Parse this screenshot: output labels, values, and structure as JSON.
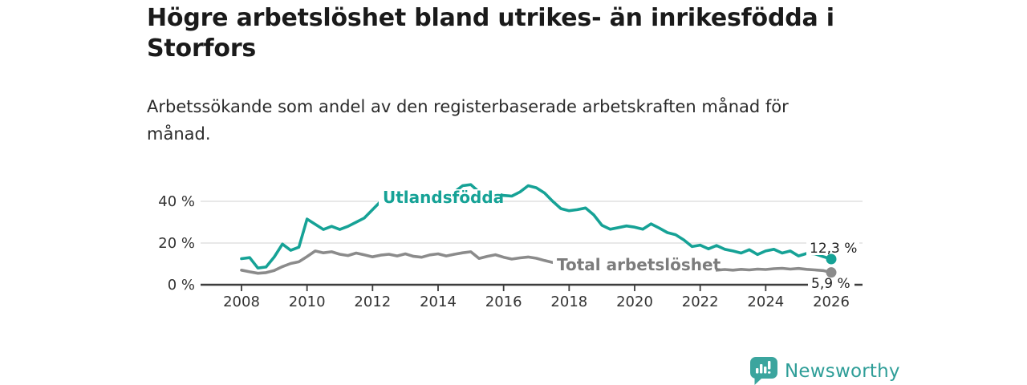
{
  "header": {
    "title_line1": "Högre arbetslöshet bland utrikes- än inrikesfödda i",
    "title_line2": "Storfors",
    "subtitle_line1": "Arbetssökande som andel av den registerbaserade arbetskraften månad för",
    "subtitle_line2": "månad."
  },
  "colors": {
    "foreign_born_line": "#16a296",
    "total_line": "#8b8b8b",
    "total_label_text": "#7c7c7c",
    "grid": "#d9d9d9",
    "axis": "#3d3d3d",
    "brand_teal": "#2f9e98",
    "value_label_text": "#1f1f1f"
  },
  "chart_data": {
    "type": "line",
    "title": "Högre arbetslöshet bland utrikes- än inrikesfödda i Storfors",
    "subtitle": "Arbetssökande som andel av den registerbaserade arbetskraften månad för månad.",
    "xlabel": "",
    "ylabel": "",
    "x_unit": "decimal_year",
    "xlim": [
      2007.8,
      2026.4
    ],
    "ylim": [
      0,
      50
    ],
    "grid": "horizontal",
    "gridlines_at": [
      20,
      40
    ],
    "yticks": [
      {
        "value": 0,
        "label": "0 %"
      },
      {
        "value": 20,
        "label": "20 %"
      },
      {
        "value": 40,
        "label": "40 %"
      }
    ],
    "xticks": [
      {
        "value": 2008,
        "label": "2008"
      },
      {
        "value": 2010,
        "label": "2010"
      },
      {
        "value": 2012,
        "label": "2012"
      },
      {
        "value": 2014,
        "label": "2014"
      },
      {
        "value": 2016,
        "label": "2016"
      },
      {
        "value": 2018,
        "label": "2018"
      },
      {
        "value": 2020,
        "label": "2020"
      },
      {
        "value": 2022,
        "label": "2022"
      },
      {
        "value": 2024,
        "label": "2024"
      },
      {
        "value": 2026,
        "label": "2026"
      }
    ],
    "legend_position": "inline-labels",
    "x": [
      2008.0,
      2008.25,
      2008.5,
      2008.75,
      2009.0,
      2009.25,
      2009.5,
      2009.75,
      2010.0,
      2010.25,
      2010.5,
      2010.75,
      2011.0,
      2011.25,
      2011.5,
      2011.75,
      2012.0,
      2012.25,
      2012.5,
      2012.75,
      2013.0,
      2013.25,
      2013.5,
      2013.75,
      2014.0,
      2014.25,
      2014.5,
      2014.75,
      2015.0,
      2015.25,
      2015.5,
      2015.75,
      2016.0,
      2016.25,
      2016.5,
      2016.75,
      2017.0,
      2017.25,
      2017.5,
      2017.75,
      2018.0,
      2018.25,
      2018.5,
      2018.75,
      2019.0,
      2019.25,
      2019.5,
      2019.75,
      2020.0,
      2020.25,
      2020.5,
      2020.75,
      2021.0,
      2021.25,
      2021.5,
      2021.75,
      2022.0,
      2022.25,
      2022.5,
      2022.75,
      2023.0,
      2023.25,
      2023.5,
      2023.75,
      2024.0,
      2024.25,
      2024.5,
      2024.75,
      2025.0,
      2025.25,
      2025.5,
      2025.75,
      2026.0
    ],
    "series": [
      {
        "name": "Utlandsfödda",
        "color": "#16a296",
        "end_value_label": "12,3 %",
        "values": [
          12.5,
          13.0,
          8.0,
          8.5,
          13.3,
          19.5,
          16.5,
          18.0,
          31.5,
          29.0,
          26.5,
          28.0,
          26.5,
          28.0,
          30.0,
          32.0,
          36.0,
          40.0,
          41.0,
          41.5,
          42.0,
          41.0,
          40.5,
          41.5,
          42.0,
          42.5,
          44.5,
          47.5,
          48.0,
          44.5,
          43.5,
          43.8,
          42.8,
          42.5,
          44.5,
          47.5,
          46.5,
          44.0,
          40.0,
          36.5,
          35.5,
          36.0,
          36.8,
          33.5,
          28.5,
          26.6,
          27.4,
          28.2,
          27.6,
          26.6,
          29.2,
          27.2,
          25.0,
          24.0,
          21.5,
          18.3,
          19.0,
          17.2,
          18.8,
          17.0,
          16.2,
          15.2,
          16.8,
          14.5,
          16.2,
          17.0,
          15.2,
          16.2,
          13.8,
          15.0,
          14.8,
          13.5,
          12.3
        ]
      },
      {
        "name": "Total arbetslöshet",
        "color": "#8b8b8b",
        "end_value_label": "5,9 %",
        "values": [
          7.0,
          6.2,
          5.5,
          5.8,
          6.8,
          8.7,
          10.2,
          11.0,
          13.5,
          16.2,
          15.3,
          15.8,
          14.6,
          14.0,
          15.2,
          14.3,
          13.4,
          14.2,
          14.6,
          13.8,
          14.8,
          13.6,
          13.2,
          14.3,
          14.8,
          13.8,
          14.6,
          15.3,
          15.8,
          12.6,
          13.6,
          14.4,
          13.2,
          12.3,
          12.9,
          13.3,
          12.7,
          11.6,
          10.7,
          10.2,
          9.8,
          9.6,
          9.4,
          9.2,
          9.0,
          8.8,
          8.7,
          8.7,
          8.9,
          9.3,
          9.1,
          8.9,
          8.6,
          8.3,
          8.0,
          7.8,
          7.5,
          7.2,
          7.0,
          7.3,
          7.0,
          7.4,
          7.1,
          7.5,
          7.3,
          7.7,
          7.9,
          7.5,
          7.8,
          7.4,
          7.1,
          6.8,
          5.9
        ]
      }
    ]
  },
  "footer": {
    "brand": "Newsworthy",
    "logo_icon": "bar-chart-speech-bubble"
  }
}
